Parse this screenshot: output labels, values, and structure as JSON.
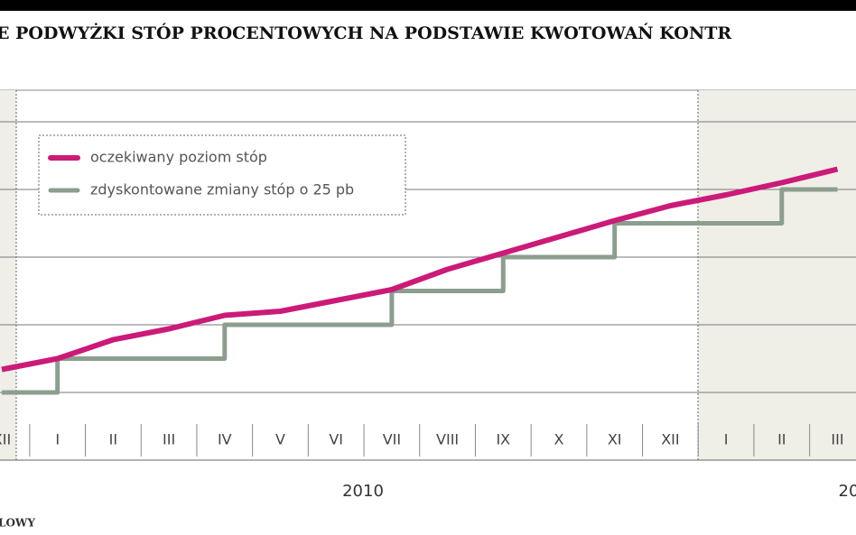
{
  "chart_data": {
    "type": "line",
    "title": "E PODWYŻKI STÓP PROCENTOWYCH NA PODSTAWIE KWOTOWAŃ KONTR",
    "categories": [
      "XII",
      "I",
      "II",
      "III",
      "IV",
      "V",
      "VI",
      "VII",
      "VIII",
      "IX",
      "X",
      "XI",
      "XII",
      "I",
      "II",
      "III"
    ],
    "x_groups": [
      "2010",
      "20"
    ],
    "source": "LOWY",
    "series": [
      {
        "name": "oczekiwany poziom stóp",
        "color": "#cc1a78",
        "values": [
          3.67,
          3.75,
          3.89,
          3.97,
          4.07,
          4.1,
          4.18,
          4.26,
          4.41,
          4.53,
          4.65,
          4.77,
          4.88,
          4.96,
          5.05,
          5.15
        ]
      },
      {
        "name": "zdyskontowane zmiany stóp o 25 pb",
        "color": "#8c9e8e",
        "step": true,
        "values": [
          3.5,
          3.75,
          3.75,
          3.75,
          4.0,
          4.0,
          4.0,
          4.25,
          4.25,
          4.5,
          4.5,
          4.75,
          4.75,
          4.75,
          5.0,
          5.0
        ]
      }
    ],
    "ylim": [
      3.5,
      5.5
    ],
    "yticks": [
      3.5,
      4.0,
      4.5,
      5.0,
      5.5
    ],
    "grid": true
  }
}
